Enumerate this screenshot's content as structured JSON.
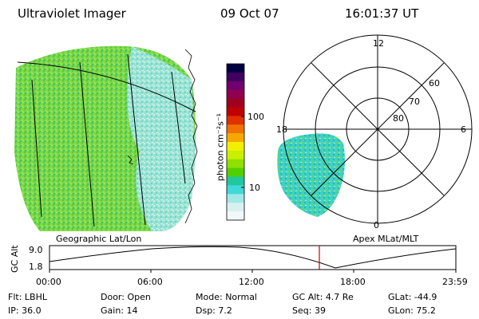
{
  "header": {
    "instrument": "Ultraviolet Imager",
    "date": "09 Oct 07",
    "time": "16:01:37 UT"
  },
  "colorbar": {
    "unit_label": "photon cm⁻²s⁻¹",
    "ticks": [
      "100",
      "10"
    ],
    "colors": [
      "#000040",
      "#400060",
      "#700070",
      "#900050",
      "#a00020",
      "#c00000",
      "#e03000",
      "#f07000",
      "#f8a800",
      "#f0f000",
      "#c8f000",
      "#90e000",
      "#50d000",
      "#20c8a0",
      "#40d8d8",
      "#a0e8e8",
      "#d8f0f0",
      "#f0f8f8"
    ]
  },
  "left_map": {
    "caption": "Geographic Lat/Lon"
  },
  "right_map": {
    "caption": "Apex  MLat/MLT",
    "mlt_labels": {
      "top": "12",
      "left": "18",
      "right": "6",
      "bottom": "0"
    },
    "lat_labels": [
      "60",
      "70",
      "80"
    ]
  },
  "orbit_plot": {
    "ylabel": "GC Alt",
    "y_ticks": [
      "9.0",
      "1.8"
    ],
    "x_ticks": [
      "00:00",
      "06:00",
      "12:00",
      "18:00",
      "23:59"
    ],
    "marker_color": "#cc0000"
  },
  "status": {
    "row1": [
      {
        "label": "Flt:",
        "value": "LBHL"
      },
      {
        "label": "Door:",
        "value": "Open"
      },
      {
        "label": "Mode:",
        "value": "Normal"
      },
      {
        "label": "GC Alt:",
        "value": "4.7 Re"
      },
      {
        "label": "GLat:",
        "value": "-44.9"
      }
    ],
    "row2": [
      {
        "label": "IP:",
        "value": "36.0"
      },
      {
        "label": "Gain:",
        "value": "14"
      },
      {
        "label": "Dsp:",
        "value": "7.2"
      },
      {
        "label": "Seq:",
        "value": "39"
      },
      {
        "label": "GLon:",
        "value": "75.2"
      }
    ]
  }
}
